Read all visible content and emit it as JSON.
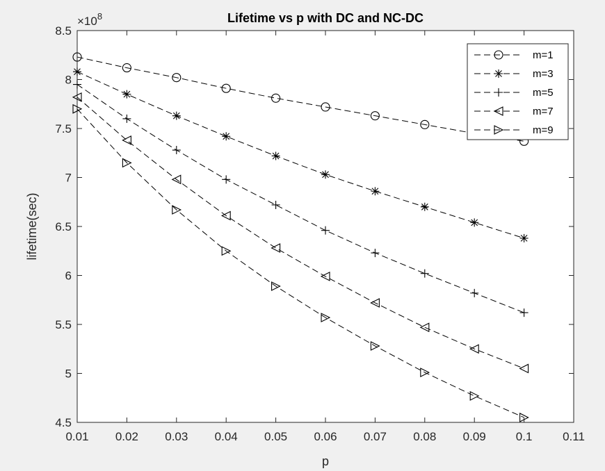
{
  "chart_data": {
    "type": "line",
    "title": "Lifetime vs p with DC and NC-DC",
    "xlabel": "p",
    "ylabel": "lifetime(sec)",
    "y_exponent_label": "×10",
    "y_exponent_power": "8",
    "xlim": [
      0.01,
      0.11
    ],
    "ylim": [
      4.5,
      8.5
    ],
    "x_ticks": [
      "0.01",
      "0.02",
      "0.03",
      "0.04",
      "0.05",
      "0.06",
      "0.07",
      "0.08",
      "0.09",
      "0.1",
      "0.11"
    ],
    "y_ticks": [
      "4.5",
      "5",
      "5.5",
      "6",
      "6.5",
      "7",
      "7.5",
      "8",
      "8.5"
    ],
    "grid": false,
    "legend_position": "top-right",
    "x": [
      0.01,
      0.02,
      0.03,
      0.04,
      0.05,
      0.06,
      0.07,
      0.08,
      0.09,
      0.1
    ],
    "series": [
      {
        "name": "m=1",
        "marker": "circle",
        "values": [
          8.23,
          8.12,
          8.02,
          7.91,
          7.81,
          7.72,
          7.63,
          7.54,
          7.45,
          7.37
        ]
      },
      {
        "name": "m=3",
        "marker": "asterisk",
        "values": [
          8.08,
          7.85,
          7.63,
          7.42,
          7.22,
          7.03,
          6.86,
          6.7,
          6.54,
          6.38
        ]
      },
      {
        "name": "m=5",
        "marker": "plus",
        "values": [
          7.95,
          7.6,
          7.28,
          6.98,
          6.72,
          6.46,
          6.23,
          6.02,
          5.82,
          5.62
        ]
      },
      {
        "name": "m=7",
        "marker": "triangle-left",
        "values": [
          7.82,
          7.38,
          6.98,
          6.61,
          6.28,
          5.99,
          5.72,
          5.47,
          5.25,
          5.05
        ]
      },
      {
        "name": "m=9",
        "marker": "triangle-right",
        "values": [
          7.7,
          7.15,
          6.67,
          6.25,
          5.89,
          5.57,
          5.28,
          5.01,
          4.77,
          4.55
        ]
      }
    ]
  }
}
